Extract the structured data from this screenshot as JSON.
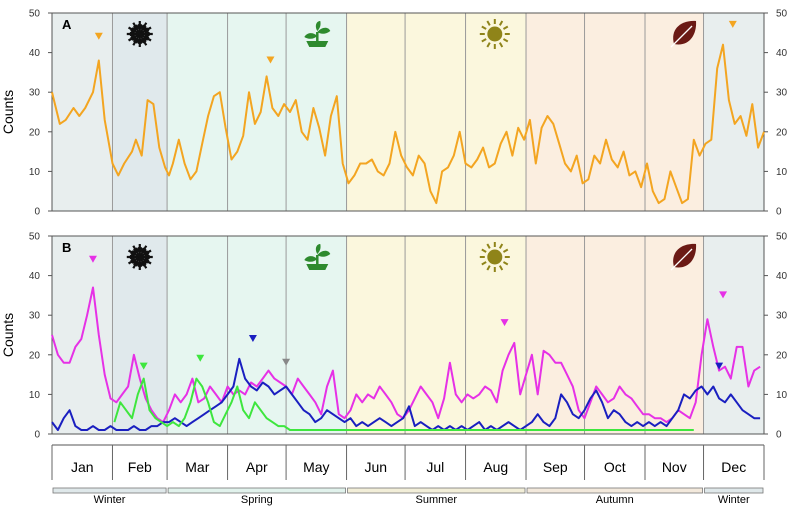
{
  "chart_data": [
    {
      "panel": "A",
      "type": "line",
      "ylabel": "Counts",
      "ylim": [
        0,
        50
      ],
      "yticks": [
        0,
        10,
        20,
        30,
        40,
        50
      ],
      "x_unit": "day of year",
      "xlim": [
        1,
        366
      ],
      "series": [
        {
          "color": "#f3a521",
          "x": [
            1,
            5,
            8,
            12,
            15,
            18,
            22,
            25,
            28,
            32,
            35,
            38,
            42,
            44,
            47,
            50,
            53,
            56,
            59,
            61,
            63,
            66,
            69,
            72,
            75,
            78,
            81,
            84,
            87,
            90,
            93,
            96,
            99,
            102,
            105,
            108,
            111,
            114,
            117,
            120,
            123,
            126,
            129,
            132,
            135,
            138,
            141,
            144,
            147,
            150,
            153,
            156,
            159,
            162,
            165,
            168,
            171,
            174,
            177,
            180,
            183,
            186,
            189,
            192,
            195,
            198,
            201,
            204,
            207,
            210,
            213,
            216,
            219,
            222,
            225,
            228,
            231,
            234,
            237,
            240,
            243,
            246,
            249,
            252,
            255,
            258,
            261,
            264,
            267,
            270,
            273,
            276,
            279,
            282,
            285,
            288,
            291,
            294,
            297,
            300,
            303,
            306,
            309,
            312,
            315,
            318,
            321,
            324,
            327,
            330,
            333,
            336,
            339,
            342,
            345,
            348,
            351,
            354,
            357,
            360,
            363,
            366
          ],
          "y": [
            30,
            22,
            23,
            26,
            24,
            26,
            30,
            38,
            23,
            12,
            9,
            12,
            15,
            18,
            14,
            28,
            27,
            16,
            11,
            9,
            12,
            18,
            12,
            8,
            10,
            17,
            24,
            29,
            30,
            21,
            13,
            15,
            19,
            30,
            22,
            25,
            34,
            26,
            24,
            27,
            25,
            28,
            20,
            18,
            26,
            21,
            14,
            24,
            29,
            12,
            7,
            9,
            12,
            12,
            13,
            10,
            9,
            12,
            20,
            14,
            11,
            9,
            14,
            12,
            5,
            2,
            10,
            11,
            14,
            20,
            12,
            11,
            13,
            16,
            11,
            12,
            17,
            20,
            14,
            21,
            18,
            23,
            12,
            21,
            24,
            22,
            17,
            12,
            10,
            14,
            7,
            8,
            14,
            12,
            18,
            13,
            11,
            15,
            9,
            10,
            6,
            12,
            5,
            2,
            3,
            10,
            6,
            2,
            3,
            18,
            14,
            17,
            18,
            36,
            42,
            28,
            22,
            24,
            19,
            27,
            16,
            20
          ]
        }
      ],
      "markers": [
        {
          "x": 25,
          "y": 44,
          "color": "#f3a521"
        },
        {
          "x": 113,
          "y": 38,
          "color": "#f3a521"
        },
        {
          "x": 350,
          "y": 47,
          "color": "#f3a521"
        }
      ]
    },
    {
      "panel": "B",
      "type": "line",
      "ylabel": "Counts",
      "ylim": [
        0,
        50
      ],
      "yticks": [
        0,
        10,
        20,
        30,
        40,
        50
      ],
      "x_unit": "day of year",
      "xlim": [
        1,
        366
      ],
      "series": [
        {
          "color": "#e631e6",
          "x": [
            1,
            4,
            7,
            10,
            13,
            16,
            19,
            22,
            25,
            28,
            31,
            34,
            37,
            40,
            43,
            46,
            49,
            52,
            55,
            58,
            61,
            64,
            67,
            70,
            73,
            76,
            79,
            82,
            85,
            88,
            91,
            94,
            97,
            100,
            103,
            106,
            109,
            112,
            115,
            118,
            121,
            124,
            127,
            130,
            133,
            136,
            139,
            142,
            145,
            148,
            151,
            154,
            157,
            160,
            163,
            166,
            169,
            172,
            175,
            178,
            181,
            184,
            187,
            190,
            193,
            196,
            199,
            202,
            205,
            208,
            211,
            214,
            217,
            220,
            223,
            226,
            229,
            232,
            235,
            238,
            241,
            244,
            247,
            250,
            253,
            256,
            259,
            262,
            265,
            268,
            271,
            274,
            277,
            280,
            283,
            286,
            289,
            292,
            295,
            298,
            301,
            304,
            307,
            310,
            313,
            316,
            319,
            322,
            325,
            328,
            331,
            334,
            337,
            340,
            343,
            346,
            349,
            352,
            355,
            358,
            361,
            364
          ],
          "y": [
            25,
            20,
            18,
            18,
            22,
            24,
            30,
            37,
            25,
            15,
            9,
            8,
            10,
            12,
            20,
            14,
            9,
            6,
            4,
            3,
            6,
            10,
            8,
            10,
            14,
            8,
            9,
            12,
            10,
            8,
            12,
            10,
            11,
            10,
            13,
            12,
            14,
            16,
            14,
            13,
            12,
            10,
            14,
            12,
            10,
            8,
            5,
            12,
            16,
            5,
            4,
            6,
            10,
            8,
            10,
            9,
            12,
            10,
            8,
            5,
            4,
            6,
            9,
            12,
            10,
            8,
            4,
            9,
            18,
            10,
            8,
            10,
            9,
            10,
            12,
            11,
            8,
            16,
            20,
            23,
            10,
            15,
            20,
            10,
            21,
            20,
            18,
            18,
            15,
            12,
            6,
            4,
            8,
            12,
            10,
            8,
            9,
            12,
            10,
            9,
            7,
            5,
            5,
            4,
            4,
            3,
            4,
            6,
            5,
            4,
            8,
            20,
            29,
            22,
            16,
            17,
            14,
            22,
            22,
            12,
            16,
            17
          ]
        },
        {
          "color": "#1a1fc0",
          "x": [
            1,
            4,
            7,
            10,
            13,
            16,
            19,
            22,
            25,
            28,
            31,
            34,
            37,
            40,
            43,
            46,
            49,
            52,
            55,
            58,
            61,
            64,
            67,
            70,
            73,
            76,
            79,
            82,
            85,
            88,
            91,
            94,
            97,
            100,
            103,
            106,
            109,
            112,
            115,
            118,
            121,
            124,
            127,
            130,
            133,
            136,
            139,
            142,
            145,
            148,
            151,
            154,
            157,
            160,
            163,
            166,
            169,
            172,
            175,
            178,
            181,
            184,
            187,
            190,
            193,
            196,
            199,
            202,
            205,
            208,
            211,
            214,
            217,
            220,
            223,
            226,
            229,
            232,
            235,
            238,
            241,
            244,
            247,
            250,
            253,
            256,
            259,
            262,
            265,
            268,
            271,
            274,
            277,
            280,
            283,
            286,
            289,
            292,
            295,
            298,
            301,
            304,
            307,
            310,
            313,
            316,
            319,
            322,
            325,
            328,
            331,
            334,
            337,
            340,
            343,
            346,
            349,
            352,
            355,
            358,
            361,
            364
          ],
          "y": [
            3,
            1,
            4,
            6,
            2,
            1,
            1,
            2,
            1,
            1,
            2,
            1,
            1,
            1,
            2,
            1,
            1,
            2,
            2,
            3,
            3,
            4,
            3,
            2,
            3,
            4,
            5,
            6,
            7,
            8,
            10,
            12,
            19,
            14,
            12,
            11,
            13,
            12,
            10,
            11,
            12,
            10,
            8,
            6,
            5,
            3,
            4,
            6,
            5,
            4,
            3,
            4,
            2,
            3,
            2,
            3,
            4,
            3,
            2,
            3,
            4,
            7,
            2,
            3,
            2,
            1,
            2,
            1,
            2,
            1,
            2,
            1,
            2,
            3,
            1,
            2,
            1,
            2,
            3,
            2,
            1,
            2,
            3,
            5,
            3,
            2,
            4,
            10,
            8,
            5,
            4,
            6,
            9,
            11,
            8,
            4,
            6,
            5,
            3,
            2,
            3,
            2,
            3,
            2,
            3,
            2,
            4,
            6,
            10,
            9,
            11,
            12,
            10,
            12,
            9,
            8,
            10,
            8,
            6,
            5,
            4,
            4
          ]
        },
        {
          "color": "#3ee63e",
          "x": [
            33,
            36,
            39,
            42,
            45,
            48,
            51,
            54,
            57,
            60,
            63,
            66,
            69,
            72,
            75,
            78,
            81,
            84,
            87,
            90,
            93,
            96,
            99,
            102,
            105,
            108,
            111,
            114,
            117,
            120,
            123,
            126,
            129,
            135,
            150,
            165,
            180,
            195,
            210,
            225,
            240,
            255,
            270,
            285,
            300,
            303,
            306,
            309,
            312,
            315,
            318,
            321,
            324,
            327,
            330
          ],
          "y": [
            3,
            8,
            6,
            4,
            10,
            14,
            6,
            4,
            3,
            2,
            3,
            2,
            4,
            8,
            14,
            12,
            8,
            3,
            2,
            5,
            8,
            12,
            6,
            4,
            8,
            6,
            4,
            3,
            2,
            2,
            1,
            1,
            1,
            1,
            1,
            1,
            1,
            1,
            1,
            1,
            1,
            1,
            1,
            1,
            1,
            1,
            1,
            1,
            1,
            1,
            1,
            1,
            1,
            1,
            1
          ]
        }
      ],
      "markers": [
        {
          "x": 22,
          "y": 44,
          "color": "#e631e6"
        },
        {
          "x": 48,
          "y": 17,
          "color": "#3ee63e"
        },
        {
          "x": 77,
          "y": 19,
          "color": "#3ee63e"
        },
        {
          "x": 104,
          "y": 24,
          "color": "#1a1fc0"
        },
        {
          "x": 121,
          "y": 18,
          "color": "#888888"
        },
        {
          "x": 233,
          "y": 28,
          "color": "#e631e6"
        },
        {
          "x": 343,
          "y": 17,
          "color": "#1a1fc0"
        },
        {
          "x": 345,
          "y": 35,
          "color": "#e631e6"
        }
      ]
    }
  ],
  "season_bands": [
    {
      "start": 1,
      "end": 32,
      "color": "#e8eeee"
    },
    {
      "start": 32,
      "end": 60,
      "color": "#e0e9ec"
    },
    {
      "start": 60,
      "end": 152,
      "color": "#e6f6f0"
    },
    {
      "start": 152,
      "end": 244,
      "color": "#fbf7dd"
    },
    {
      "start": 244,
      "end": 335,
      "color": "#fbeee0"
    },
    {
      "start": 335,
      "end": 366,
      "color": "#e8eeee"
    }
  ],
  "month_boundaries": [
    32,
    60,
    91,
    121,
    152,
    182,
    213,
    244,
    274,
    305,
    335
  ],
  "months": [
    "Jan",
    "Feb",
    "Mar",
    "Apr",
    "May",
    "Jun",
    "Jul",
    "Aug",
    "Sep",
    "Oct",
    "Nov",
    "Dec"
  ],
  "seasons": [
    {
      "label": "Winter",
      "start": 1,
      "end": 60
    },
    {
      "label": "Spring",
      "start": 60,
      "end": 152
    },
    {
      "label": "Summer",
      "start": 152,
      "end": 244
    },
    {
      "label": "Autumn",
      "start": 244,
      "end": 335
    },
    {
      "label": "Winter",
      "start": 335,
      "end": 366
    }
  ],
  "season_bar_colors": {
    "Winter": "#dfe8ea",
    "Spring": "#e1f2ec",
    "Summer": "#f2eed8",
    "Autumn": "#f3e9dc"
  },
  "icons": [
    {
      "name": "snowflake-icon",
      "x": 46,
      "color": "#111111"
    },
    {
      "name": "plant-icon",
      "x": 137,
      "color": "#2e8a2e"
    },
    {
      "name": "sun-icon",
      "x": 228,
      "color": "#8f8419"
    },
    {
      "name": "leaf-icon",
      "x": 325,
      "color": "#6b1a15"
    }
  ]
}
